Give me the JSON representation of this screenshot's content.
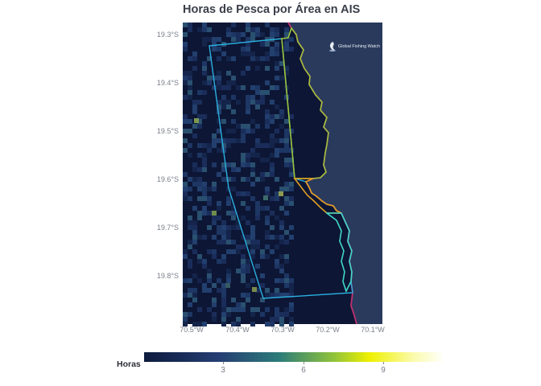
{
  "title": "Horas de Pesca por Área en AIS",
  "map": {
    "logo_text": "Global Fishing Watch",
    "lat_labels": [
      "19.3°S",
      "19.4°S",
      "19.5°S",
      "19.6°S",
      "19.7°S",
      "19.8°S"
    ],
    "lon_labels": [
      "70.5°W",
      "70.4°W",
      "70.3°W",
      "70.2°W",
      "70.1°W"
    ],
    "colors": {
      "ocean": "#0d1635",
      "land": "#2a3a5c",
      "area_blue": "#2ab0e0",
      "area_green": "#9ac43c",
      "area_orange": "#e0a020",
      "area_cyan": "#40d8c8",
      "coast": "#c03070"
    }
  },
  "legend": {
    "title": "Horas",
    "ticks": [
      "3",
      "6",
      "9"
    ]
  }
}
